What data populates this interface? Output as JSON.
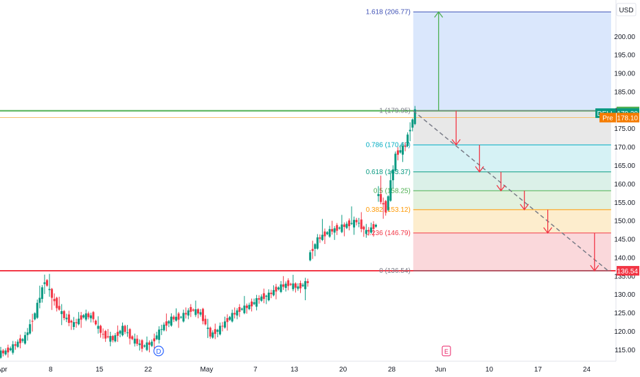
{
  "chart_data": {
    "type": "candlestick",
    "symbol": "DELL",
    "currency": "USD",
    "y_ticks": [
      "115.00",
      "120.00",
      "125.00",
      "130.00",
      "135.00",
      "140.00",
      "145.00",
      "150.00",
      "155.00",
      "160.00",
      "165.00",
      "170.00",
      "175.00",
      "180.00",
      "185.00",
      "190.00",
      "195.00",
      "200.00"
    ],
    "x_ticks": [
      {
        "label": "Apr",
        "x": 1
      },
      {
        "label": "8",
        "x": 6
      },
      {
        "label": "15",
        "x": 11
      },
      {
        "label": "22",
        "x": 16
      },
      {
        "label": "May",
        "x": 22
      },
      {
        "label": "7",
        "x": 27
      },
      {
        "label": "13",
        "x": 31
      },
      {
        "label": "20",
        "x": 36
      },
      {
        "label": "28",
        "x": 41
      },
      {
        "label": "Jun",
        "x": 46
      },
      {
        "label": "10",
        "x": 51
      },
      {
        "label": "17",
        "x": 56
      },
      {
        "label": "24",
        "x": 61
      }
    ],
    "ylim": [
      112,
      210
    ],
    "xlim": [
      0.8,
      64
    ],
    "fib_levels": [
      {
        "label": "1.618 (206.77)",
        "value": 206.77,
        "color": "#3f51b5",
        "fill": "#d6e4fc"
      },
      {
        "label": "1 (179.95)",
        "value": 179.95,
        "color": "#787b86",
        "fill": "#e6e6e6"
      },
      {
        "label": "0.786 (170.69)",
        "value": 170.69,
        "color": "#00acc1",
        "fill": "#d1f1f4"
      },
      {
        "label": "0.618 (163.37)",
        "value": 163.37,
        "color": "#089981",
        "fill": "#d7eee6"
      },
      {
        "label": "0.5 (158.25)",
        "value": 158.25,
        "color": "#4caf50",
        "fill": "#dff0da"
      },
      {
        "label": "0.382 (153.12)",
        "value": 153.12,
        "color": "#ff9800",
        "fill": "#fdebc8"
      },
      {
        "label": "0.236 (146.79)",
        "value": 146.79,
        "color": "#f23645",
        "fill": "#fad4d7"
      },
      {
        "label": "0 (136.54)",
        "value": 136.54,
        "color": "#787b86",
        "fill": ""
      }
    ],
    "fib_x": [
      43.2,
      63.5
    ],
    "horizontal_lines": [
      {
        "value": 136.54,
        "color": "#f23645"
      },
      {
        "value": 179.95,
        "color": "#4caf50"
      }
    ],
    "price_badges": [
      {
        "prefix": "",
        "text": "179.75",
        "value": 179.75,
        "color": "#4caf50"
      },
      {
        "prefix": "DELL",
        "text": "179.30",
        "value": 179.3,
        "color": "#089981"
      },
      {
        "prefix": "Pre",
        "text": "178.10",
        "value": 178.1,
        "color": "#f57c00"
      },
      {
        "prefix": "",
        "text": "136.54",
        "value": 136.54,
        "color": "#f23645"
      }
    ],
    "prev_close_line": 178.1,
    "trend_dashed": [
      [
        43.2,
        179.95
      ],
      [
        63.2,
        136.54
      ]
    ],
    "up_arrow": {
      "x": 45.8,
      "from": 179.95,
      "to": 206.77
    },
    "down_arrows": [
      {
        "x": 47.6,
        "from": 179.95,
        "to": 170.69
      },
      {
        "x": 50.0,
        "from": 170.69,
        "to": 163.37
      },
      {
        "x": 52.2,
        "from": 163.37,
        "to": 158.25
      },
      {
        "x": 54.6,
        "from": 158.25,
        "to": 153.12
      },
      {
        "x": 57.0,
        "from": 153.12,
        "to": 146.79
      },
      {
        "x": 61.8,
        "from": 146.79,
        "to": 136.54
      }
    ],
    "candles": [
      [
        1,
        114,
        115,
        113.6,
        114.6
      ],
      [
        2,
        114.5,
        117,
        114,
        116.5
      ],
      [
        3,
        116.5,
        119,
        116,
        118.5
      ],
      [
        4,
        118.5,
        126,
        118,
        125
      ],
      [
        5,
        125,
        136.4,
        124,
        134
      ],
      [
        6,
        134,
        136,
        125,
        128
      ],
      [
        7,
        128,
        130.5,
        122,
        124
      ],
      [
        8,
        124,
        125,
        120,
        122
      ],
      [
        9,
        122,
        126,
        121,
        124.5
      ],
      [
        10,
        124.5,
        125,
        123,
        124
      ],
      [
        11,
        123,
        124,
        118,
        119
      ],
      [
        12,
        119,
        121,
        117,
        118
      ],
      [
        13,
        118,
        122,
        117,
        121
      ],
      [
        14,
        121,
        122,
        117,
        118
      ],
      [
        15,
        118,
        119,
        115,
        116
      ],
      [
        16,
        116,
        118,
        114.5,
        117
      ],
      [
        17,
        117,
        122,
        116,
        121
      ],
      [
        18,
        121,
        125,
        120,
        123.5
      ],
      [
        19,
        123.5,
        126,
        122,
        124
      ],
      [
        20,
        124,
        127,
        123,
        126
      ],
      [
        21,
        126,
        127.5,
        124,
        125
      ],
      [
        22,
        125,
        126,
        118,
        119
      ],
      [
        23,
        119,
        122,
        117.5,
        121
      ],
      [
        24,
        121,
        125,
        120,
        124
      ],
      [
        25,
        124,
        127,
        123,
        126
      ],
      [
        26,
        126,
        129,
        125,
        127
      ],
      [
        27,
        127,
        130,
        126,
        129
      ],
      [
        28,
        129,
        131,
        127,
        130
      ],
      [
        29,
        130,
        133,
        129,
        132
      ],
      [
        30,
        132,
        135,
        131,
        133
      ],
      [
        31,
        133,
        134.5,
        131,
        132
      ],
      [
        32,
        132,
        134,
        129,
        133.5
      ],
      [
        33,
        140,
        146,
        138,
        145
      ],
      [
        34,
        145,
        151,
        144,
        147
      ],
      [
        35,
        147,
        150,
        145,
        148
      ],
      [
        36,
        148,
        151,
        146,
        149
      ],
      [
        37,
        149,
        154.5,
        147,
        150
      ],
      [
        38,
        150,
        152,
        145,
        147
      ],
      [
        39,
        147,
        150,
        146,
        149
      ],
      [
        40,
        158,
        163,
        150,
        153
      ],
      [
        41,
        153,
        170,
        152,
        168
      ],
      [
        42,
        168,
        172,
        166,
        170.5
      ],
      [
        43,
        171,
        180,
        170,
        179.75
      ]
    ]
  },
  "markers": {
    "dividend": "D",
    "earnings": "E"
  }
}
